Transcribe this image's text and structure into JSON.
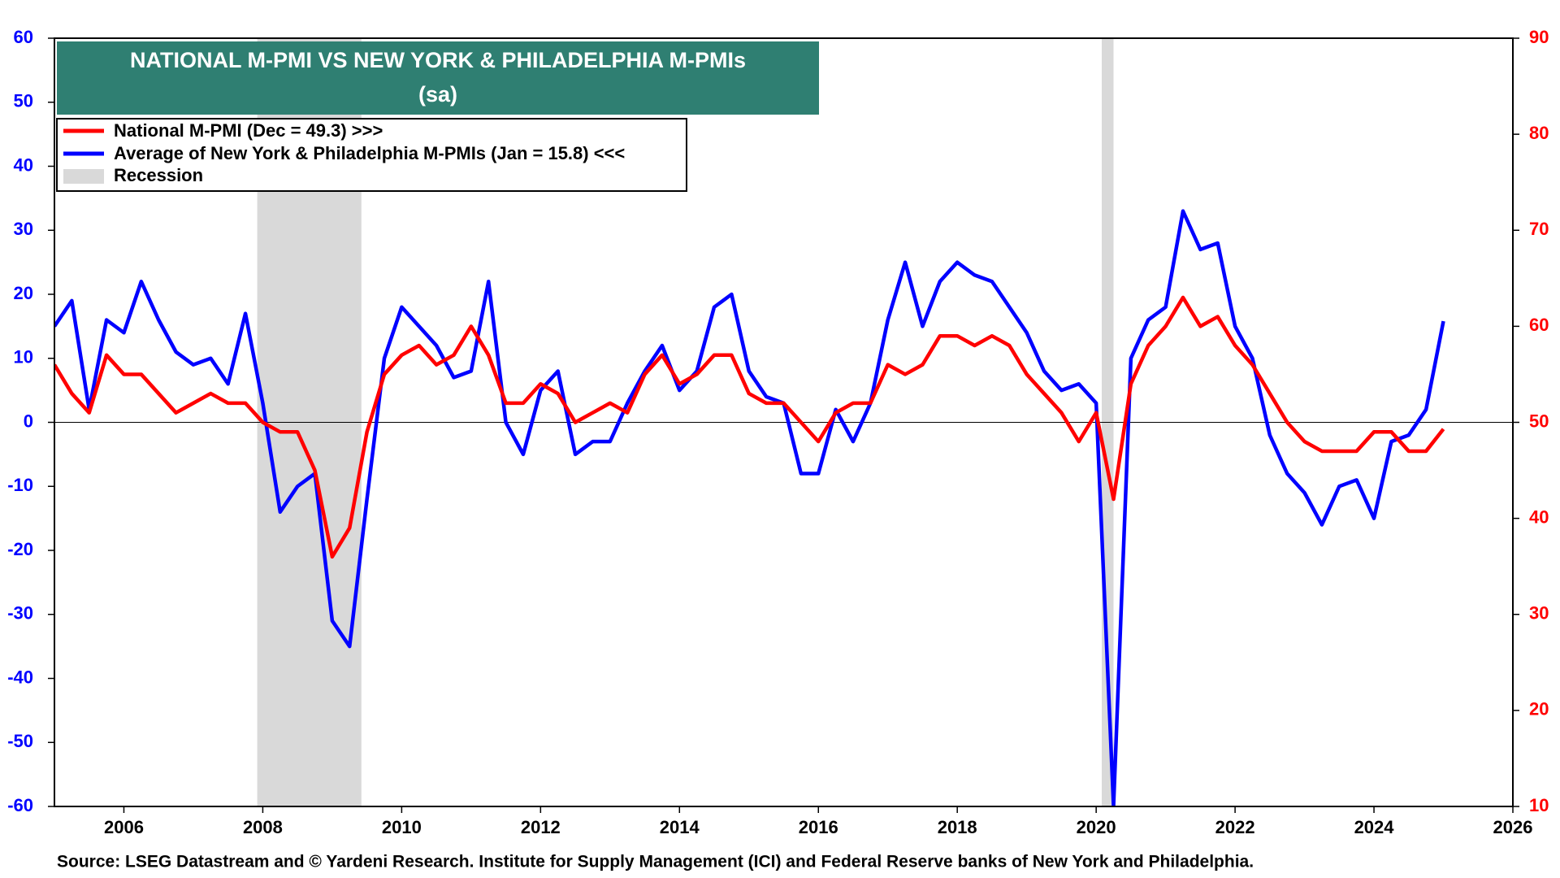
{
  "chart_data": {
    "type": "line",
    "title": "NATIONAL M-PMI VS NEW YORK & PHILADELPHIA M-PMIs",
    "subtitle": "(sa)",
    "source": "Source: LSEG Datastream and © Yardeni Research. Institute for Supply Management (ICI) and Federal Reserve banks of New York and Philadelphia.",
    "recession_label": "Recession",
    "recession_color": "#d9d9d9",
    "recessions": [
      [
        2007.92,
        2009.42
      ],
      [
        2020.08,
        2020.25
      ]
    ],
    "xlim": [
      2005,
      2026
    ],
    "xticks": [
      2006,
      2008,
      2010,
      2012,
      2014,
      2016,
      2018,
      2020,
      2022,
      2024,
      2026
    ],
    "ylim": [
      -60,
      60
    ],
    "yticks": [
      -60,
      -50,
      -40,
      -30,
      -20,
      -10,
      0,
      10,
      20,
      30,
      40,
      50,
      60
    ],
    "y2lim": [
      10,
      90
    ],
    "y2ticks": [
      10,
      20,
      30,
      40,
      50,
      60,
      70,
      80,
      90
    ],
    "x": [
      2005.0,
      2005.25,
      2005.5,
      2005.75,
      2006.0,
      2006.25,
      2006.5,
      2006.75,
      2007.0,
      2007.25,
      2007.5,
      2007.75,
      2008.0,
      2008.25,
      2008.5,
      2008.75,
      2009.0,
      2009.25,
      2009.5,
      2009.75,
      2010.0,
      2010.25,
      2010.5,
      2010.75,
      2011.0,
      2011.25,
      2011.5,
      2011.75,
      2012.0,
      2012.25,
      2012.5,
      2012.75,
      2013.0,
      2013.25,
      2013.5,
      2013.75,
      2014.0,
      2014.25,
      2014.5,
      2014.75,
      2015.0,
      2015.25,
      2015.5,
      2015.75,
      2016.0,
      2016.25,
      2016.5,
      2016.75,
      2017.0,
      2017.25,
      2017.5,
      2017.75,
      2018.0,
      2018.25,
      2018.5,
      2018.75,
      2019.0,
      2019.25,
      2019.5,
      2019.75,
      2020.0,
      2020.25,
      2020.5,
      2020.75,
      2021.0,
      2021.25,
      2021.5,
      2021.75,
      2022.0,
      2022.25,
      2022.5,
      2022.75,
      2023.0,
      2023.25,
      2023.5,
      2023.75,
      2024.0,
      2024.25,
      2024.5,
      2024.75,
      2025.0
    ],
    "series": [
      {
        "name": "National M-PMI (Dec = 49.3) >>>",
        "color": "#ff0000",
        "axis": "y2",
        "values": [
          56,
          53,
          51,
          57,
          55,
          55,
          53,
          51,
          52,
          53,
          52,
          52,
          50,
          49,
          49,
          45,
          36,
          39,
          49,
          55,
          57,
          58,
          56,
          57,
          60,
          57,
          52,
          52,
          54,
          53,
          50,
          51,
          52,
          51,
          55,
          57,
          54,
          55,
          57,
          57,
          53,
          52,
          52,
          50,
          48,
          51,
          52,
          52,
          56,
          55,
          56,
          59,
          59,
          58,
          59,
          58,
          55,
          53,
          51,
          48,
          51,
          42,
          54,
          58,
          60,
          63,
          60,
          61,
          58,
          56,
          53,
          50,
          48,
          47,
          47,
          47,
          49,
          49,
          47,
          47,
          49.3
        ]
      },
      {
        "name": "Average of New York & Philadelphia M-PMIs (Jan = 15.8) <<<",
        "color": "#0000ff",
        "axis": "y",
        "values": [
          15,
          19,
          2,
          16,
          14,
          22,
          16,
          11,
          9,
          10,
          6,
          17,
          3,
          -14,
          -10,
          -8,
          -31,
          -35,
          -12,
          10,
          18,
          15,
          12,
          7,
          8,
          22,
          0,
          -5,
          5,
          8,
          -5,
          -3,
          -3,
          3,
          8,
          12,
          5,
          8,
          18,
          20,
          8,
          4,
          3,
          -8,
          -8,
          2,
          -3,
          3,
          16,
          25,
          15,
          22,
          25,
          23,
          22,
          18,
          14,
          8,
          5,
          6,
          3,
          -60,
          10,
          16,
          18,
          33,
          27,
          28,
          15,
          10,
          -2,
          -8,
          -11,
          -16,
          -10,
          -9,
          -15,
          -3,
          -2,
          2,
          15.8
        ]
      }
    ]
  }
}
